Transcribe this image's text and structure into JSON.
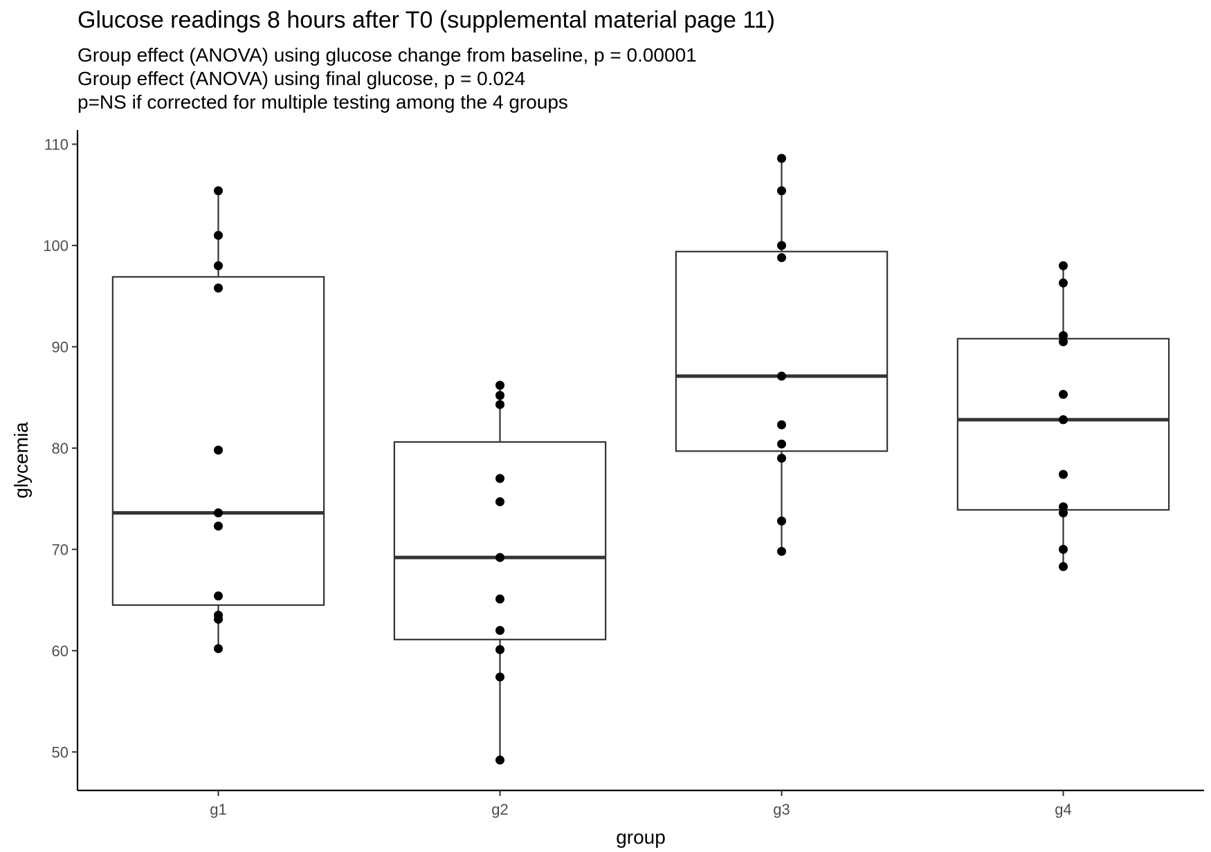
{
  "chart_data": {
    "type": "box",
    "title": "Glucose readings 8 hours after T0 (supplemental material page 11)",
    "subtitle_lines": [
      "Group effect (ANOVA) using glucose change from baseline, p = 0.00001",
      "Group effect (ANOVA) using final glucose, p = 0.024",
      "p=NS if corrected for multiple testing among the 4 groups"
    ],
    "xlabel": "group",
    "ylabel": "glycemia",
    "categories": [
      "g1",
      "g2",
      "g3",
      "g4"
    ],
    "ylim": [
      46.2,
      111.4
    ],
    "yticks": [
      50,
      60,
      70,
      80,
      90,
      100,
      110
    ],
    "boxes": [
      {
        "category": "g1",
        "q1": 64.5,
        "median": 73.6,
        "q3": 96.9,
        "whisker_low": 60.2,
        "whisker_high": 105.4
      },
      {
        "category": "g2",
        "q1": 61.1,
        "median": 69.2,
        "q3": 80.6,
        "whisker_low": 49.2,
        "whisker_high": 86.2
      },
      {
        "category": "g3",
        "q1": 79.7,
        "median": 87.1,
        "q3": 99.4,
        "whisker_low": 69.8,
        "whisker_high": 108.6
      },
      {
        "category": "g4",
        "q1": 73.9,
        "median": 82.8,
        "q3": 90.8,
        "whisker_low": 68.3,
        "whisker_high": 98.0
      }
    ],
    "points": [
      {
        "category": "g1",
        "values": [
          105.4,
          101.0,
          98.0,
          95.8,
          79.8,
          73.6,
          72.3,
          65.4,
          63.5,
          63.1,
          60.2
        ]
      },
      {
        "category": "g2",
        "values": [
          86.2,
          85.2,
          84.3,
          77.0,
          74.7,
          69.2,
          65.1,
          62.0,
          60.1,
          57.4,
          49.2
        ]
      },
      {
        "category": "g3",
        "values": [
          108.6,
          105.4,
          100.0,
          98.8,
          87.1,
          82.3,
          80.4,
          79.0,
          72.8,
          69.8
        ]
      },
      {
        "category": "g4",
        "values": [
          98.0,
          96.3,
          91.1,
          90.5,
          85.3,
          82.8,
          77.4,
          74.2,
          73.6,
          70.0,
          68.3
        ]
      }
    ],
    "legend": "none",
    "grid": false
  }
}
